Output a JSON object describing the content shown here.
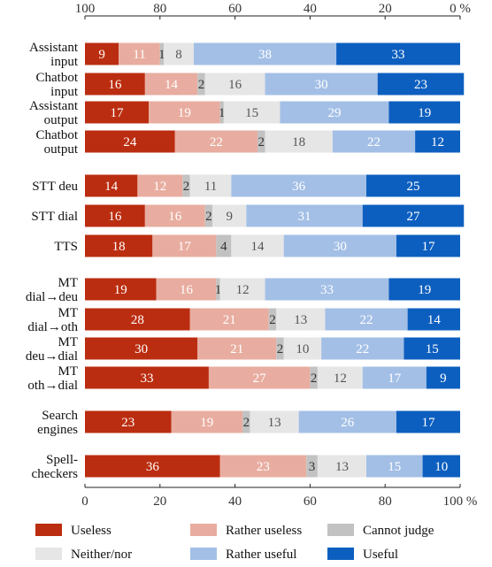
{
  "chart_data": {
    "type": "bar",
    "orientation": "horizontal",
    "stacked": true,
    "x_bottom_ticks": [
      "0",
      "20",
      "40",
      "60",
      "80",
      "100 %"
    ],
    "x_top_ticks": [
      "100",
      "80",
      "60",
      "40",
      "20",
      "0 %"
    ],
    "xlim": [
      0,
      100
    ],
    "legend_position": "bottom",
    "colors": [
      "#bb2d10",
      "#e8ada0",
      "#c2c2c2",
      "#e6e6e6",
      "#a3bfe6",
      "#0d5fbf"
    ],
    "text_colors": [
      "#ffffff",
      "#ffffff",
      "#333333",
      "#555555",
      "#ffffff",
      "#ffffff"
    ],
    "series": [
      {
        "name": "Useless",
        "values": [
          9,
          16,
          17,
          24,
          14,
          16,
          18,
          19,
          28,
          30,
          33,
          23,
          36
        ]
      },
      {
        "name": "Rather useless",
        "values": [
          11,
          14,
          19,
          22,
          12,
          16,
          17,
          16,
          21,
          21,
          27,
          19,
          23
        ]
      },
      {
        "name": "Cannot judge",
        "values": [
          1,
          2,
          1,
          2,
          2,
          2,
          4,
          1,
          2,
          2,
          2,
          2,
          3
        ]
      },
      {
        "name": "Neither/nor",
        "values": [
          8,
          16,
          15,
          18,
          11,
          9,
          14,
          12,
          13,
          10,
          12,
          13,
          13
        ]
      },
      {
        "name": "Rather useful",
        "values": [
          38,
          30,
          29,
          22,
          36,
          31,
          30,
          33,
          22,
          22,
          17,
          26,
          15
        ]
      },
      {
        "name": "Useful",
        "values": [
          33,
          23,
          19,
          12,
          25,
          27,
          17,
          19,
          14,
          15,
          9,
          17,
          10
        ]
      }
    ],
    "categories": [
      [
        "Assistant",
        "input"
      ],
      [
        "Chatbot",
        "input"
      ],
      [
        "Assistant",
        "output"
      ],
      [
        "Chatbot",
        "output"
      ],
      [
        "STT deu"
      ],
      [
        "STT dial"
      ],
      [
        "TTS"
      ],
      [
        "MT",
        "dial→deu"
      ],
      [
        "MT",
        "dial→oth"
      ],
      [
        "MT",
        "deu→dial"
      ],
      [
        "MT",
        "oth→dial"
      ],
      [
        "Search",
        "engines"
      ],
      [
        "Spell-",
        "checkers"
      ]
    ]
  }
}
